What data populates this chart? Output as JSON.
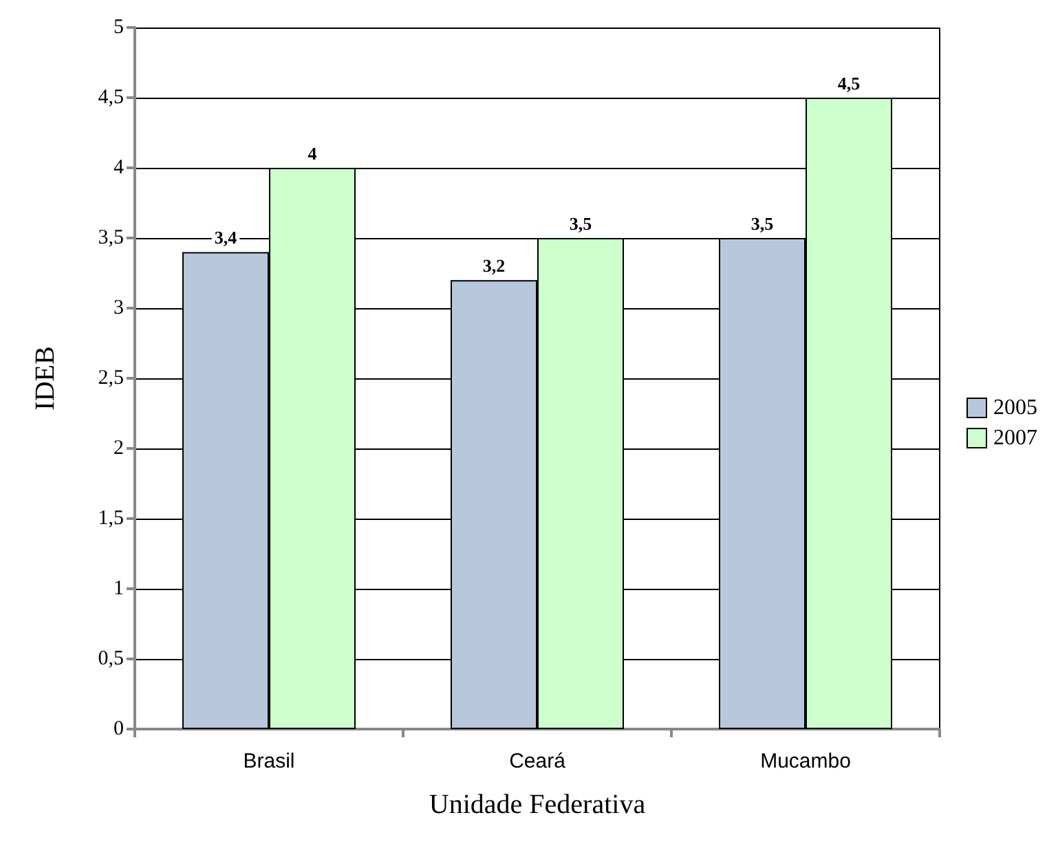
{
  "chart_data": {
    "type": "bar",
    "xlabel": "Unidade Federativa",
    "ylabel": "IDEB",
    "categories": [
      "Brasil",
      "Ceará",
      "Mucambo"
    ],
    "series": [
      {
        "name": "2005",
        "color": "#b8c8dc",
        "values": [
          3.4,
          3.2,
          3.5
        ],
        "value_labels": [
          "3,4",
          "3,2",
          "3,5"
        ]
      },
      {
        "name": "2007",
        "color": "#ccffcc",
        "values": [
          4,
          3.5,
          4.5
        ],
        "value_labels": [
          "4",
          "3,5",
          "4,5"
        ]
      }
    ],
    "ylim": [
      0,
      5
    ],
    "yticks": [
      0,
      {
        "value": 0.5,
        "label": "0,5"
      },
      1,
      {
        "value": 1.5,
        "label": "1,5"
      },
      2,
      {
        "value": 2.5,
        "label": "2,5"
      },
      3,
      {
        "value": 3.5,
        "label": "3,5"
      },
      4,
      {
        "value": 4.5,
        "label": "4,5"
      },
      5
    ],
    "grid": "y",
    "legend": "right"
  }
}
